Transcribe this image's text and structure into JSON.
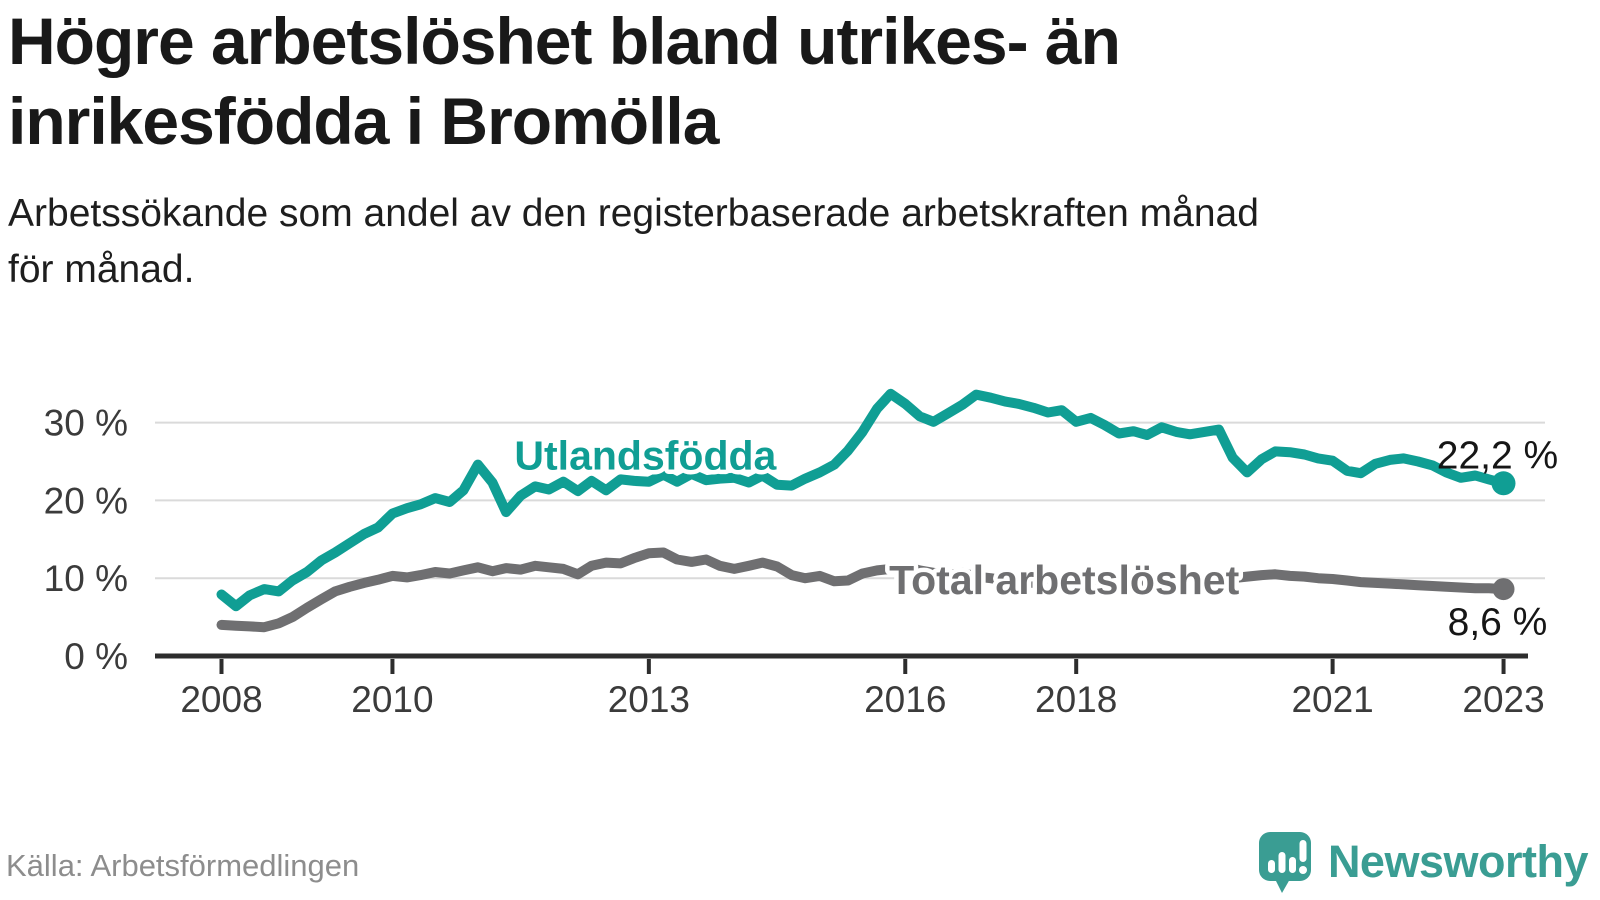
{
  "header": {
    "title_lines": [
      "Högre arbetslöshet bland utrikes- än",
      "inrikesfödda i Bromölla"
    ],
    "subtitle_lines": [
      "Arbetssökande som andel av den registerbaserade arbetskraften månad",
      "för månad."
    ]
  },
  "footer": {
    "source": "Källa: Arbetsförmedlingen"
  },
  "branding": {
    "name": "Newsworthy",
    "icon": "speech-bubble-bar-chart-logo",
    "color": "#3a9d93"
  },
  "colors": {
    "foreign_born_line": "#109e94",
    "total_line": "#6f6f71",
    "axis": "#2d2d2d",
    "gridline": "#dadada",
    "axis_text": "#3b3b3b",
    "end_label_text": "#161616"
  },
  "chart_data": {
    "type": "line",
    "title": "",
    "xlabel": "",
    "ylabel": "",
    "unit": "%",
    "x_unit": "decimal_year_monthly",
    "xlim": [
      2008,
      2023
    ],
    "ylim": [
      0,
      34
    ],
    "grid": "horizontal",
    "legend_position": "inline-labels",
    "x_ticks": [
      {
        "v": 2008,
        "label": "2008"
      },
      {
        "v": 2010,
        "label": "2010"
      },
      {
        "v": 2013,
        "label": "2013"
      },
      {
        "v": 2016,
        "label": "2016"
      },
      {
        "v": 2018,
        "label": "2018"
      },
      {
        "v": 2021,
        "label": "2021"
      },
      {
        "v": 2023,
        "label": "2023"
      }
    ],
    "y_ticks": [
      {
        "v": 0,
        "label": "0 %"
      },
      {
        "v": 10,
        "label": "10 %"
      },
      {
        "v": 20,
        "label": "20 %"
      },
      {
        "v": 30,
        "label": "30 %"
      }
    ],
    "x": [
      2008.0,
      2008.17,
      2008.33,
      2008.5,
      2008.67,
      2008.83,
      2009.0,
      2009.17,
      2009.33,
      2009.5,
      2009.67,
      2009.83,
      2010.0,
      2010.17,
      2010.33,
      2010.5,
      2010.67,
      2010.83,
      2011.0,
      2011.17,
      2011.33,
      2011.5,
      2011.67,
      2011.83,
      2012.0,
      2012.17,
      2012.33,
      2012.5,
      2012.67,
      2012.83,
      2013.0,
      2013.17,
      2013.33,
      2013.5,
      2013.67,
      2013.83,
      2014.0,
      2014.17,
      2014.33,
      2014.5,
      2014.67,
      2014.83,
      2015.0,
      2015.17,
      2015.33,
      2015.5,
      2015.67,
      2015.83,
      2016.0,
      2016.17,
      2016.33,
      2016.5,
      2016.67,
      2016.83,
      2017.0,
      2017.17,
      2017.33,
      2017.5,
      2017.67,
      2017.83,
      2018.0,
      2018.17,
      2018.33,
      2018.5,
      2018.67,
      2018.83,
      2019.0,
      2019.17,
      2019.33,
      2019.5,
      2019.67,
      2019.83,
      2020.0,
      2020.17,
      2020.33,
      2020.5,
      2020.67,
      2020.83,
      2021.0,
      2021.17,
      2021.33,
      2021.5,
      2021.67,
      2021.83,
      2022.0,
      2022.17,
      2022.33,
      2022.5,
      2022.67,
      2022.83,
      2023.0
    ],
    "series": [
      {
        "id": "total",
        "name": "Total arbetslöshet",
        "label": "Total arbetslöshet",
        "color": "#6f6f71",
        "width": 10,
        "dot_r": 11,
        "label_x": 2017.86,
        "label_y": 9.8,
        "end_label": "8,6 %",
        "end_value": 8.6,
        "end_dx": -6,
        "end_dy": 46,
        "values": [
          4.0,
          3.9,
          3.8,
          3.7,
          4.2,
          5.0,
          6.2,
          7.3,
          8.3,
          8.9,
          9.4,
          9.8,
          10.3,
          10.1,
          10.4,
          10.8,
          10.6,
          11.0,
          11.4,
          10.9,
          11.3,
          11.1,
          11.6,
          11.4,
          11.2,
          10.5,
          11.6,
          12.0,
          11.9,
          12.6,
          13.2,
          13.3,
          12.4,
          12.1,
          12.4,
          11.6,
          11.2,
          11.6,
          12.0,
          11.5,
          10.4,
          10.0,
          10.3,
          9.6,
          9.7,
          10.6,
          11.0,
          11.2,
          11.5,
          11.0,
          10.7,
          10.4,
          10.7,
          10.2,
          10.0,
          9.7,
          9.5,
          9.4,
          9.6,
          9.8,
          9.6,
          9.4,
          9.2,
          9.1,
          9.3,
          9.5,
          9.7,
          9.5,
          9.4,
          9.6,
          9.8,
          10.0,
          10.2,
          10.4,
          10.5,
          10.3,
          10.2,
          10.0,
          9.9,
          9.7,
          9.5,
          9.4,
          9.3,
          9.2,
          9.1,
          9.0,
          8.9,
          8.8,
          8.7,
          8.7,
          8.6
        ]
      },
      {
        "id": "utlandsfodda",
        "name": "Utlandsfödda",
        "label": "Utlandsfödda",
        "color": "#109e94",
        "width": 10,
        "dot_r": 12,
        "label_x": 2012.96,
        "label_y": 25.8,
        "end_label": "22,2 %",
        "end_value": 22.2,
        "end_dx": -6,
        "end_dy": -15,
        "values": [
          7.9,
          6.4,
          7.8,
          8.6,
          8.3,
          9.7,
          10.8,
          12.3,
          13.3,
          14.5,
          15.7,
          16.5,
          18.3,
          19.0,
          19.5,
          20.3,
          19.8,
          21.3,
          24.6,
          22.3,
          18.5,
          20.6,
          21.8,
          21.4,
          22.4,
          21.2,
          22.5,
          21.3,
          22.7,
          22.5,
          22.4,
          23.3,
          22.4,
          23.4,
          22.6,
          22.8,
          22.9,
          22.3,
          23.2,
          22.0,
          21.9,
          22.8,
          23.6,
          24.6,
          26.4,
          28.8,
          31.8,
          33.7,
          32.4,
          30.8,
          30.1,
          31.2,
          32.3,
          33.6,
          33.2,
          32.7,
          32.4,
          31.9,
          31.3,
          31.6,
          30.1,
          30.6,
          29.7,
          28.6,
          28.9,
          28.4,
          29.4,
          28.8,
          28.5,
          28.8,
          29.1,
          25.5,
          23.6,
          25.3,
          26.3,
          26.2,
          25.9,
          25.4,
          25.1,
          23.8,
          23.5,
          24.7,
          25.2,
          25.4,
          25.0,
          24.5,
          23.6,
          22.9,
          23.2,
          22.7,
          22.2
        ]
      }
    ]
  }
}
